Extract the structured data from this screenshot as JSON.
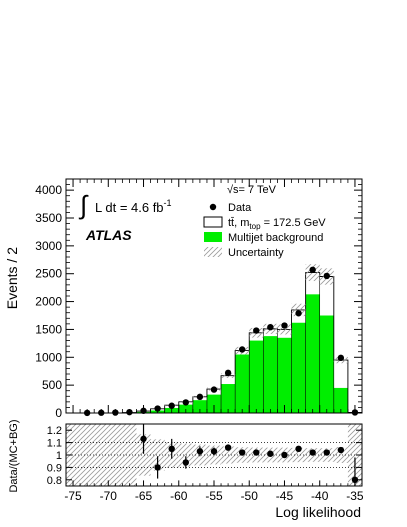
{
  "chart_data": [
    {
      "type": "bar",
      "title": "",
      "xlabel": "",
      "ylabel": "Events / 2",
      "xlim": [
        -76,
        -34
      ],
      "ylim": [
        0,
        4200
      ],
      "yticks": [
        0,
        500,
        1000,
        1500,
        2000,
        2500,
        3000,
        3500,
        4000
      ],
      "grid": false,
      "legend_position": "top-right",
      "annotations": {
        "lumi_prefix": "∫",
        "lumi_text": "L dt = 4.6 fb",
        "lumi_exp": "-1",
        "experiment": "ATLAS",
        "energy": "√s= 7 TeV"
      },
      "legend": [
        {
          "key": "data",
          "label": "Data"
        },
        {
          "key": "ttbar",
          "label": "tt̄, m_top = 172.5 GeV",
          "label_pre": "tt̄, m",
          "label_sub": "top",
          "label_post": " = 172.5 GeV",
          "color": "#ffffff"
        },
        {
          "key": "multijet",
          "label": "Multijet background",
          "color": "#00ee00"
        },
        {
          "key": "unc",
          "label": "Uncertainty",
          "color": "#bbbbbb"
        }
      ],
      "bin_edges": [
        -76,
        -74,
        -72,
        -70,
        -68,
        -66,
        -64,
        -62,
        -60,
        -58,
        -56,
        -54,
        -52,
        -50,
        -48,
        -46,
        -44,
        -42,
        -40,
        -38,
        -36,
        -34
      ],
      "series": [
        {
          "name": "Multijet background",
          "values": [
            0,
            0,
            0,
            0,
            5,
            20,
            45,
            90,
            150,
            230,
            330,
            520,
            1050,
            1300,
            1380,
            1350,
            1620,
            2130,
            1750,
            450,
            5
          ]
        },
        {
          "name": "tt̄, m_top = 172.5 GeV",
          "values": [
            0,
            0,
            0,
            0,
            7,
            35,
            75,
            140,
            200,
            290,
            430,
            670,
            1120,
            1440,
            1510,
            1500,
            1850,
            2520,
            2450,
            950,
            10
          ]
        }
      ],
      "data_points": {
        "x": [
          -73,
          -71,
          -69,
          -67,
          -65,
          -63,
          -61,
          -59,
          -57,
          -55,
          -53,
          -51,
          -49,
          -47,
          -45,
          -43,
          -41,
          -39,
          -37,
          -35
        ],
        "y": [
          2,
          5,
          8,
          15,
          40,
          80,
          130,
          190,
          290,
          420,
          720,
          1140,
          1480,
          1540,
          1570,
          1790,
          2570,
          2460,
          990,
          10
        ]
      }
    },
    {
      "type": "scatter",
      "title": "",
      "xlabel": "Log likelihood",
      "ylabel": "Data/(MC+BG)",
      "xlim": [
        -76,
        -34
      ],
      "ylim": [
        0.75,
        1.25
      ],
      "yticks": [
        0.8,
        0.9,
        1,
        1.1,
        1.2
      ],
      "xticks": [
        -75,
        -70,
        -65,
        -60,
        -55,
        -50,
        -45,
        -40,
        -35
      ],
      "grid": false,
      "points": [
        {
          "x": -65,
          "y": 1.13,
          "err": 0.12
        },
        {
          "x": -63,
          "y": 0.9,
          "err": 0.09
        },
        {
          "x": -61,
          "y": 1.05,
          "err": 0.08
        },
        {
          "x": -59,
          "y": 0.94,
          "err": 0.05
        },
        {
          "x": -57,
          "y": 1.03,
          "err": 0.04
        },
        {
          "x": -55,
          "y": 1.03,
          "err": 0.03
        },
        {
          "x": -53,
          "y": 1.06,
          "err": 0.025
        },
        {
          "x": -51,
          "y": 1.02,
          "err": 0.02
        },
        {
          "x": -49,
          "y": 1.02,
          "err": 0.015
        },
        {
          "x": -47,
          "y": 1.01,
          "err": 0.015
        },
        {
          "x": -45,
          "y": 1.0,
          "err": 0.015
        },
        {
          "x": -43,
          "y": 1.05,
          "err": 0.015
        },
        {
          "x": -41,
          "y": 1.02,
          "err": 0.012
        },
        {
          "x": -39,
          "y": 1.02,
          "err": 0.012
        },
        {
          "x": -37,
          "y": 1.04,
          "err": 0.02
        },
        {
          "x": -35,
          "y": 0.8,
          "err": 0.18
        }
      ]
    }
  ]
}
